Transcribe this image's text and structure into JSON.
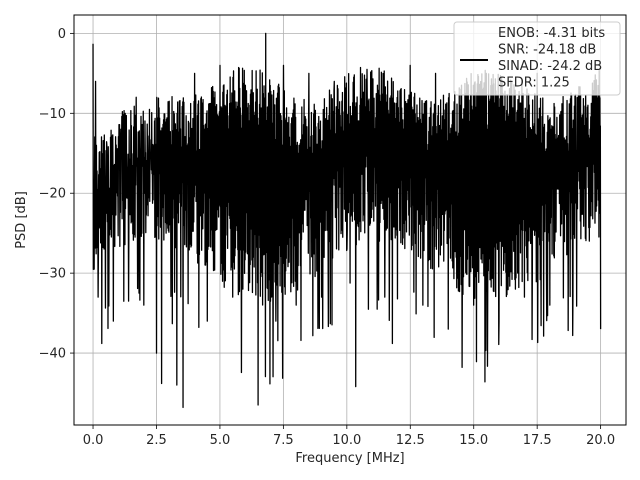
{
  "chart_data": {
    "type": "line",
    "title": "",
    "xlabel": "Frequency [MHz]",
    "ylabel": "PSD [dB]",
    "xlim": [
      -0.75,
      21.0
    ],
    "ylim": [
      -49.0,
      2.3
    ],
    "xticks": [
      0.0,
      2.5,
      5.0,
      7.5,
      10.0,
      12.5,
      15.0,
      17.5,
      20.0
    ],
    "xtick_labels": [
      "0.0",
      "2.5",
      "5.0",
      "7.5",
      "10.0",
      "12.5",
      "15.0",
      "17.5",
      "20.0"
    ],
    "yticks": [
      0,
      -10,
      -20,
      -30,
      -40
    ],
    "ytick_labels": [
      "0",
      "−10",
      "−20",
      "−30",
      "−40"
    ],
    "grid": true,
    "legend_position": "top-right",
    "line_color": "#000000",
    "series": [
      {
        "name": "",
        "x": [
          0.0,
          0.05,
          0.1,
          0.2,
          0.35,
          0.55,
          0.8,
          1.1,
          1.4,
          1.7,
          2.0,
          2.5,
          2.7,
          3.0,
          3.3,
          3.55,
          4.0,
          4.5,
          5.0,
          5.5,
          6.0,
          6.5,
          6.6,
          6.8,
          7.2,
          7.5,
          8.0,
          8.5,
          9.0,
          9.5,
          10.0,
          10.35,
          10.8,
          11.5,
          11.8,
          12.5,
          13.0,
          13.5,
          14.0,
          14.5,
          15.0,
          15.5,
          16.0,
          16.5,
          17.0,
          17.5,
          18.0,
          18.5,
          18.9,
          19.5,
          20.0
        ],
        "y": [
          -1.3,
          -29.5,
          -6.0,
          -33.0,
          -38.8,
          -14.0,
          -36.0,
          -12.0,
          -33.5,
          -8.0,
          -34.0,
          -40.0,
          -43.8,
          -8.5,
          -44.0,
          -46.8,
          -5.0,
          -36.0,
          -4.0,
          -33.0,
          -6.5,
          -46.5,
          -20.0,
          0.0,
          -36.0,
          -4.0,
          -34.0,
          -5.0,
          -33.0,
          -6.0,
          -27.0,
          -44.2,
          -4.5,
          -33.0,
          -38.8,
          -4.0,
          -34.0,
          -5.0,
          -37.0,
          -7.0,
          -34.0,
          -5.0,
          -36.0,
          -6.0,
          -33.0,
          -5.0,
          -34.0,
          -9.0,
          -37.8,
          -9.0,
          -37.0
        ]
      }
    ],
    "legend": {
      "entries": [
        "ENOB: -4.31 bits",
        "SNR: -24.18 dB",
        "SINAD: -24.2 dB",
        "SFDR: 1.25"
      ]
    }
  }
}
